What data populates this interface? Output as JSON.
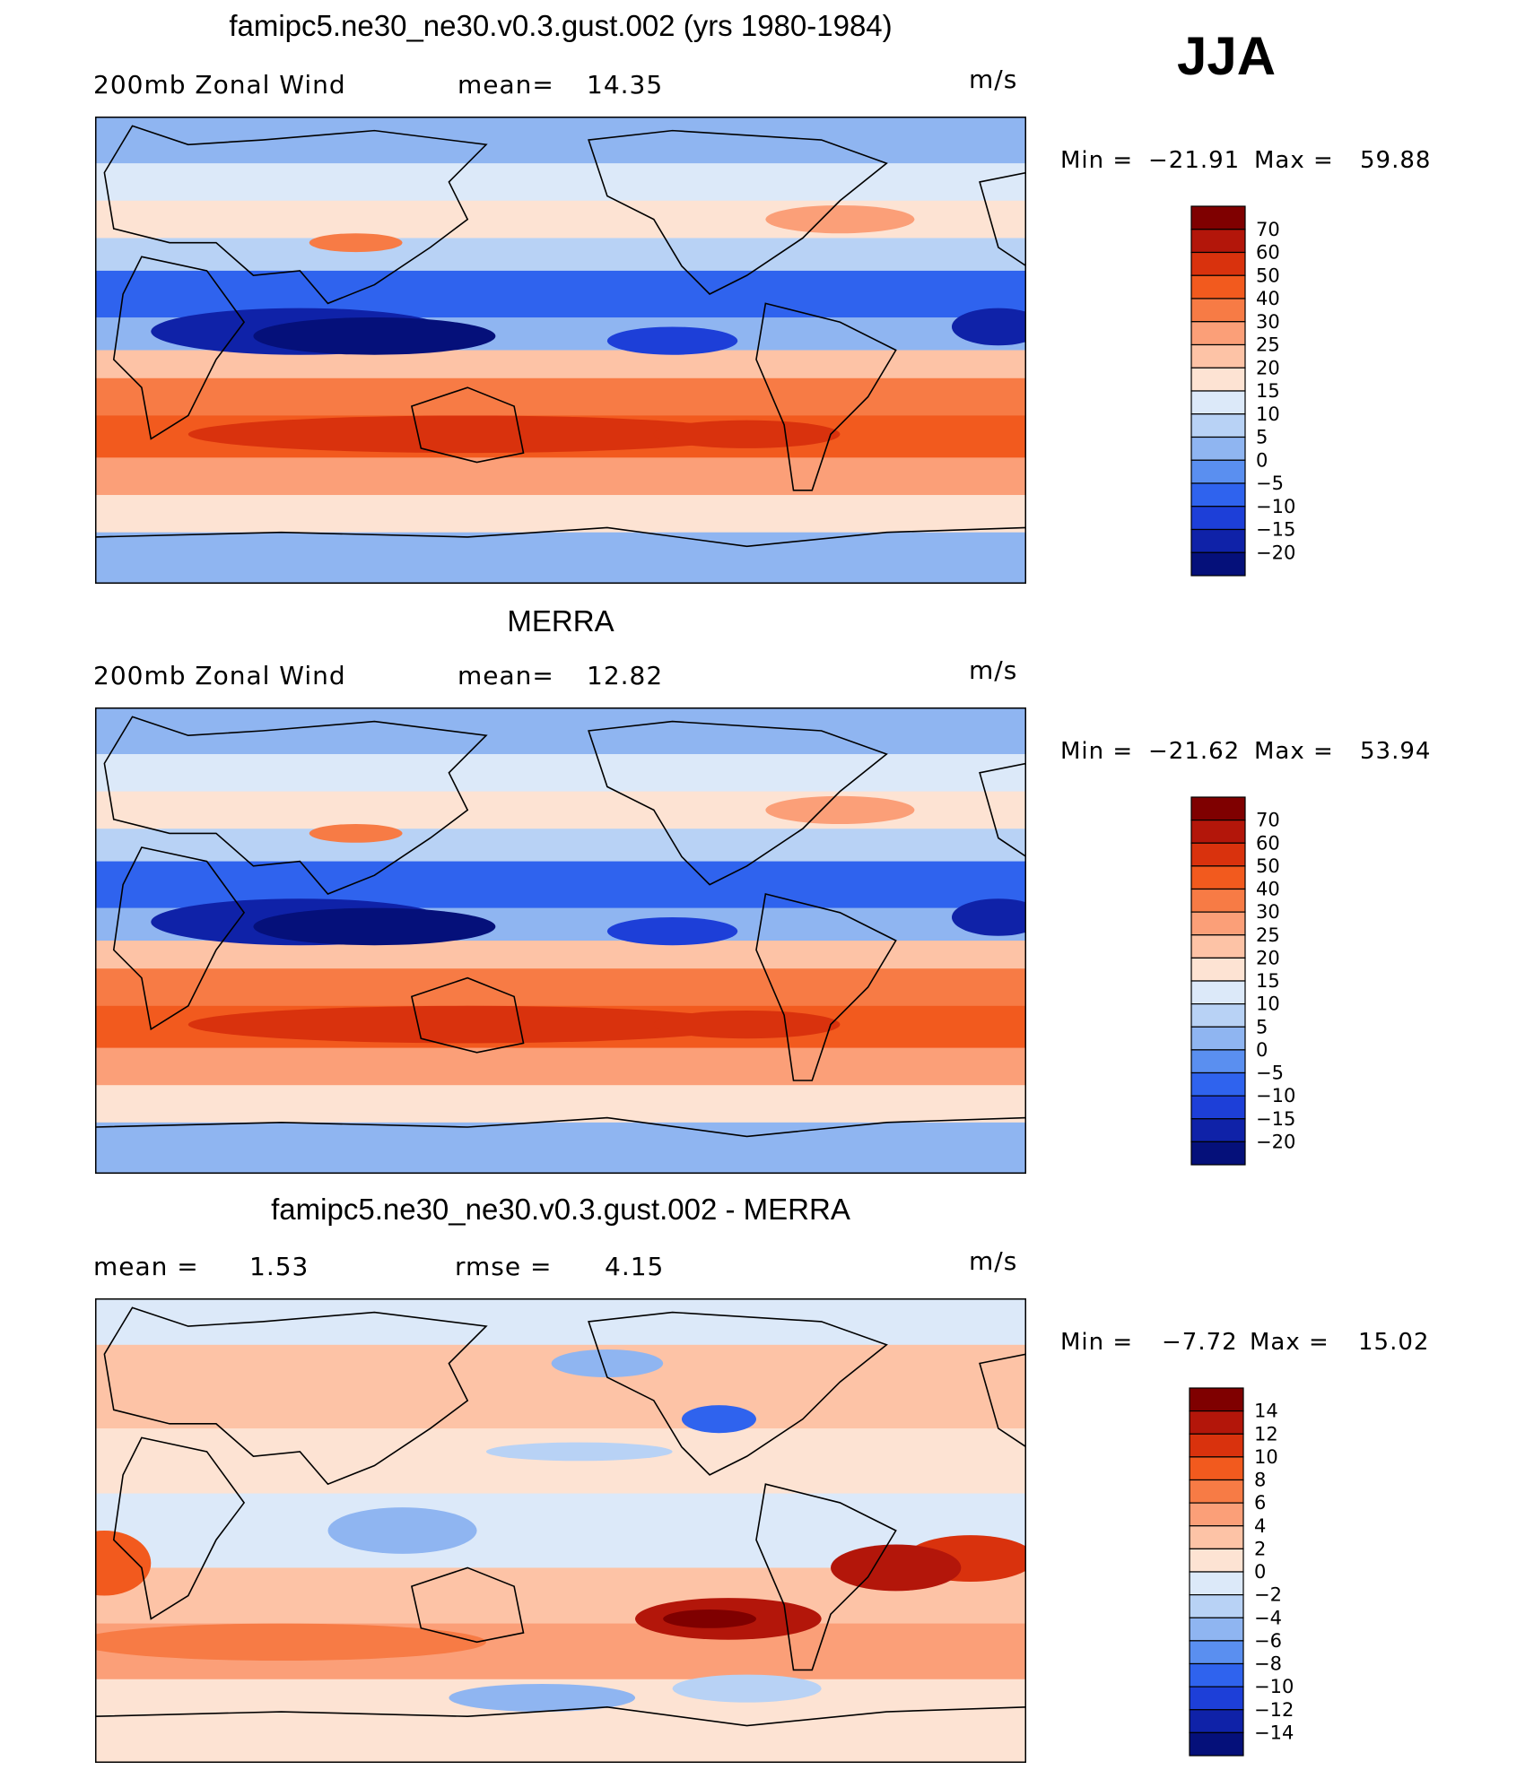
{
  "season": "JJA",
  "chart_data": [
    {
      "type": "heatmap",
      "title": "famipc5.ne30_ne30.v0.3.gust.002 (yrs 1980-1984)",
      "variable": "200mb Zonal Wind",
      "stat1_label": "mean=",
      "stat1_value": "14.35",
      "units": "m/s",
      "min_label": "Min =",
      "min_value": "−21.91",
      "max_label": "Max =",
      "max_value": "59.88",
      "mean": 14.35,
      "min": -21.91,
      "max": 59.88,
      "kind": "field",
      "colorbar_levels": [
        "70",
        "60",
        "50",
        "40",
        "30",
        "25",
        "20",
        "15",
        "10",
        "5",
        "0",
        "−5",
        "−10",
        "−15",
        "−20"
      ],
      "colors": [
        "#7f0000",
        "#b3160a",
        "#d9320d",
        "#f25a1e",
        "#f77b45",
        "#fb9f78",
        "#fdc3a6",
        "#fde3d3",
        "#dce9f9",
        "#b8d2f5",
        "#8fb5f1",
        "#5a8ff0",
        "#2f63ee",
        "#1d3fd8",
        "#0f22a8",
        "#05107a"
      ]
    },
    {
      "type": "heatmap",
      "title": "MERRA",
      "variable": "200mb Zonal Wind",
      "stat1_label": "mean=",
      "stat1_value": "12.82",
      "units": "m/s",
      "min_label": "Min =",
      "min_value": "−21.62",
      "max_label": "Max =",
      "max_value": "53.94",
      "mean": 12.82,
      "min": -21.62,
      "max": 53.94,
      "kind": "field",
      "colorbar_levels": [
        "70",
        "60",
        "50",
        "40",
        "30",
        "25",
        "20",
        "15",
        "10",
        "5",
        "0",
        "−5",
        "−10",
        "−15",
        "−20"
      ],
      "colors": [
        "#7f0000",
        "#b3160a",
        "#d9320d",
        "#f25a1e",
        "#f77b45",
        "#fb9f78",
        "#fdc3a6",
        "#fde3d3",
        "#dce9f9",
        "#b8d2f5",
        "#8fb5f1",
        "#5a8ff0",
        "#2f63ee",
        "#1d3fd8",
        "#0f22a8",
        "#05107a"
      ]
    },
    {
      "type": "heatmap",
      "title": "famipc5.ne30_ne30.v0.3.gust.002 - MERRA",
      "variable": "mean =",
      "stat1_label": "",
      "stat1_value": "1.53",
      "stat2_label": "rmse =",
      "stat2_value": "4.15",
      "units": "m/s",
      "min_label": "Min =",
      "min_value": "−7.72",
      "max_label": "Max =",
      "max_value": "15.02",
      "mean": 1.53,
      "rmse": 4.15,
      "min": -7.72,
      "max": 15.02,
      "kind": "diff",
      "colorbar_levels": [
        "14",
        "12",
        "10",
        "8",
        "6",
        "4",
        "2",
        "0",
        "−2",
        "−4",
        "−6",
        "−8",
        "−10",
        "−12",
        "−14"
      ],
      "colors": [
        "#7f0000",
        "#b3160a",
        "#d9320d",
        "#f25a1e",
        "#f77b45",
        "#fb9f78",
        "#fdc3a6",
        "#fde3d3",
        "#dce9f9",
        "#b8d2f5",
        "#8fb5f1",
        "#5a8ff0",
        "#2f63ee",
        "#1d3fd8",
        "#0f22a8",
        "#05107a"
      ]
    }
  ]
}
